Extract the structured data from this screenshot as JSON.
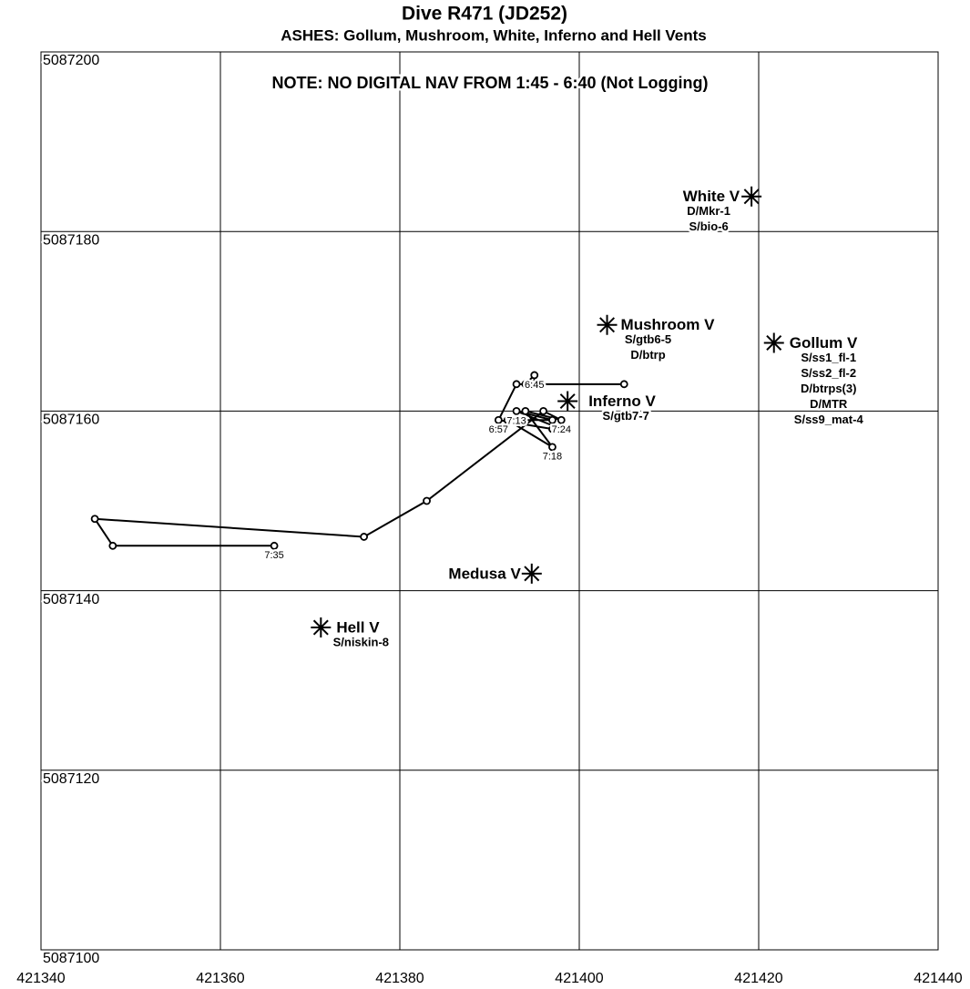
{
  "chart_data": {
    "type": "line",
    "title": "Dive R471 (JD252)",
    "subtitle": "ASHES:  Gollum, Mushroom, White, Inferno and Hell Vents",
    "note": "NOTE:  NO DIGITAL NAV FROM 1:45 - 6:40  (Not Logging)",
    "xlim": [
      421340,
      421440
    ],
    "xticks": [
      421340,
      421360,
      421380,
      421400,
      421420,
      421440
    ],
    "ylim": [
      5087100,
      5087200
    ],
    "yticks": [
      5087100,
      5087120,
      5087140,
      5087160,
      5087180,
      5087200
    ],
    "grid": true,
    "series": [
      {
        "color": "#000000",
        "x": [
          421405,
          421395,
          421395,
          421394,
          421393,
          421391,
          421397,
          421398,
          421393,
          421397,
          421392,
          421397,
          421394,
          421398,
          421396,
          421383,
          421376,
          421346,
          421348,
          421366
        ],
        "y": [
          5087163,
          5087163,
          5087164,
          5087163,
          5087163,
          5087159,
          5087158,
          5087158,
          5087160,
          5087159,
          5087159,
          5087156,
          5087160,
          5087159,
          5087160,
          5087150,
          5087146,
          5087148,
          5087145,
          5087145
        ],
        "labels": [
          null,
          null,
          "6:45",
          null,
          null,
          "6:57",
          null,
          null,
          "7:13",
          null,
          null,
          "7:18",
          null,
          "7:24",
          null,
          null,
          null,
          null,
          null,
          "7:35"
        ]
      }
    ],
    "vents": [
      {
        "name": "White V",
        "x": 421419.2,
        "y": 5087183.9,
        "samples": [
          "D/Mkr-1",
          "S/bio-6"
        ]
      },
      {
        "name": "Mushroom V",
        "x": 421403.1,
        "y": 5087169.6,
        "samples": [
          "S/gtb6-5",
          "D/btrp"
        ]
      },
      {
        "name": "Gollum V",
        "x": 421421.7,
        "y": 5087167.6,
        "samples": [
          "S/ss1_fl-1",
          "S/ss2_fl-2",
          "D/btrps(3)",
          "D/MTR",
          "S/ss9_mat-4"
        ]
      },
      {
        "name": "Inferno V",
        "x": 421398.7,
        "y": 5087161.1,
        "samples": [
          "S/gtb7-7"
        ]
      },
      {
        "name": "Medusa V",
        "x": 421394.7,
        "y": 5087141.9,
        "samples": []
      },
      {
        "name": "Hell V",
        "x": 421371.2,
        "y": 5087135.9,
        "samples": [
          "S/niskin-8"
        ]
      }
    ]
  }
}
